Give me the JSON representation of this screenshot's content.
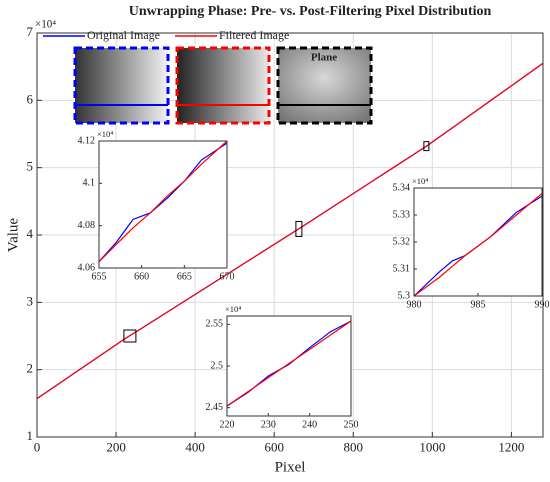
{
  "chart_data": [
    {
      "type": "line",
      "title": "Unwrapping Phase: Pre- vs. Post-Filtering Pixel Distribution",
      "xlabel": "Pixel",
      "ylabel": "Value",
      "y_exponent": "×10⁴",
      "annotations": [
        "Plane"
      ],
      "grid": true,
      "legend": "top-left",
      "xlim": [
        0,
        1280
      ],
      "xticks": [
        0,
        200,
        400,
        600,
        800,
        1000,
        1200
      ],
      "ylim": [
        1,
        7
      ],
      "yticks": [
        1,
        2,
        3,
        4,
        5,
        6,
        7
      ],
      "x": [
        0,
        220,
        250,
        655,
        670,
        980,
        990,
        1280
      ],
      "series": [
        {
          "name": "Original Image",
          "color": "#0000ff",
          "values": [
            1.57,
            2.45,
            2.56,
            4.065,
            4.12,
            5.3,
            5.338,
            6.55
          ]
        },
        {
          "name": "Filtered Image",
          "color": "#ff0000",
          "values": [
            1.57,
            2.45,
            2.56,
            4.065,
            4.12,
            5.3,
            5.338,
            6.55
          ]
        }
      ]
    },
    {
      "type": "line",
      "y_exponent": "×10⁴",
      "xlim": [
        655,
        670
      ],
      "xticks": [
        655,
        660,
        665,
        670
      ],
      "ylim": [
        4.06,
        4.12
      ],
      "yticks": [
        4.06,
        4.08,
        4.1,
        4.12
      ],
      "x": [
        655,
        657,
        659,
        661,
        663,
        665,
        667,
        670
      ],
      "series": [
        {
          "color": "#0000ff",
          "values": [
            4.063,
            4.072,
            4.083,
            4.086,
            4.093,
            4.101,
            4.111,
            4.119
          ]
        },
        {
          "color": "#ff0000",
          "values": [
            4.063,
            4.071,
            4.079,
            4.086,
            4.094,
            4.101,
            4.109,
            4.12
          ]
        }
      ]
    },
    {
      "type": "line",
      "y_exponent": "×10⁴",
      "xlim": [
        220,
        250
      ],
      "xticks": [
        220,
        230,
        240,
        250
      ],
      "ylim": [
        2.44,
        2.56
      ],
      "yticks": [
        2.45,
        2.5,
        2.55
      ],
      "x": [
        220,
        225,
        230,
        235,
        240,
        245,
        250
      ],
      "series": [
        {
          "color": "#0000ff",
          "values": [
            2.452,
            2.468,
            2.488,
            2.502,
            2.522,
            2.541,
            2.554
          ]
        },
        {
          "color": "#ff0000",
          "values": [
            2.452,
            2.469,
            2.486,
            2.503,
            2.52,
            2.537,
            2.554
          ]
        }
      ]
    },
    {
      "type": "line",
      "y_exponent": "×10⁴",
      "xlim": [
        980,
        990
      ],
      "xticks": [
        980,
        985,
        990
      ],
      "ylim": [
        5.3,
        5.34
      ],
      "yticks": [
        5.3,
        5.31,
        5.32,
        5.33,
        5.34
      ],
      "x": [
        980,
        982,
        983,
        984,
        986,
        988,
        990
      ],
      "series": [
        {
          "color": "#0000ff",
          "values": [
            5.3,
            5.309,
            5.313,
            5.315,
            5.322,
            5.331,
            5.337
          ]
        },
        {
          "color": "#ff0000",
          "values": [
            5.3,
            5.307,
            5.311,
            5.315,
            5.322,
            5.33,
            5.338
          ]
        }
      ]
    }
  ]
}
